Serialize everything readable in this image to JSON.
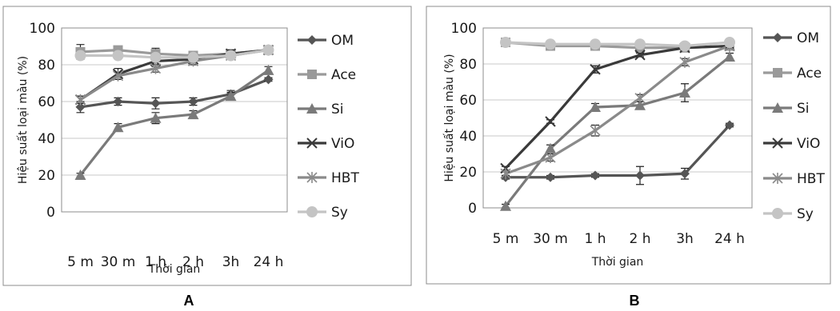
{
  "chart_data": [
    {
      "type": "line",
      "panel_label": "A",
      "xlabel": "Thời gian",
      "ylabel": "Hiệu suất loại màu (%)",
      "categories": [
        "5 m",
        "30 m",
        "1 h",
        "2 h",
        "3h",
        "24 h"
      ],
      "ylim": [
        0,
        100
      ],
      "yticks": [
        "0",
        "20",
        "40",
        "60",
        "80",
        "100"
      ],
      "grid": true,
      "legend_position": "right",
      "series": [
        {
          "name": "OM",
          "color": "#555555",
          "marker": "diamond",
          "values": [
            57,
            60,
            59,
            60,
            64,
            72
          ],
          "errors": [
            3,
            2,
            3,
            2,
            2,
            1
          ]
        },
        {
          "name": "Ace",
          "color": "#9a9a9a",
          "marker": "square",
          "values": [
            87,
            88,
            86,
            85,
            86,
            88
          ],
          "errors": [
            4,
            2,
            3,
            2,
            2,
            1
          ]
        },
        {
          "name": "Si",
          "color": "#7a7a7a",
          "marker": "triangle",
          "values": [
            20,
            46,
            51,
            53,
            63,
            77
          ],
          "errors": [
            1,
            2,
            3,
            2,
            2,
            2
          ]
        },
        {
          "name": "ViO",
          "color": "#3a3a3a",
          "marker": "x",
          "values": [
            61,
            75,
            82,
            83,
            86,
            88
          ],
          "errors": [
            2,
            3,
            3,
            2,
            2,
            1
          ]
        },
        {
          "name": "HBT",
          "color": "#8a8a8a",
          "marker": "star",
          "values": [
            61,
            74,
            78,
            82,
            85,
            88
          ],
          "errors": [
            2,
            2,
            2,
            2,
            2,
            1
          ]
        },
        {
          "name": "Sy",
          "color": "#c4c4c4",
          "marker": "circle",
          "values": [
            85,
            85,
            84,
            84,
            85,
            88
          ],
          "errors": [
            2,
            1,
            1,
            1,
            1,
            1
          ]
        }
      ]
    },
    {
      "type": "line",
      "panel_label": "B",
      "xlabel": "Thời gian",
      "ylabel": "Hiệu suất loại màu (%)",
      "categories": [
        "5 m",
        "30 m",
        "1 h",
        "2 h",
        "3h",
        "24 h"
      ],
      "ylim": [
        0,
        100
      ],
      "yticks": [
        "0",
        "20",
        "40",
        "60",
        "80",
        "100"
      ],
      "grid": true,
      "legend_position": "right",
      "series": [
        {
          "name": "OM",
          "color": "#555555",
          "marker": "diamond",
          "values": [
            17,
            17,
            18,
            18,
            19,
            46
          ],
          "errors": [
            1,
            1,
            1,
            5,
            3,
            1
          ]
        },
        {
          "name": "Ace",
          "color": "#9a9a9a",
          "marker": "square",
          "values": [
            92,
            90,
            90,
            89,
            89,
            90
          ],
          "errors": [
            1,
            1,
            1,
            1,
            1,
            1
          ]
        },
        {
          "name": "Si",
          "color": "#7a7a7a",
          "marker": "triangle",
          "values": [
            1,
            33,
            56,
            57,
            64,
            84
          ],
          "errors": [
            1,
            2,
            2,
            2,
            5,
            2
          ]
        },
        {
          "name": "ViO",
          "color": "#3a3a3a",
          "marker": "x",
          "values": [
            22,
            48,
            77,
            85,
            89,
            90
          ],
          "errors": [
            1,
            1,
            2,
            1,
            1,
            1
          ]
        },
        {
          "name": "HBT",
          "color": "#8a8a8a",
          "marker": "star",
          "values": [
            19,
            28,
            43,
            61,
            81,
            90
          ],
          "errors": [
            1,
            2,
            3,
            2,
            2,
            1
          ]
        },
        {
          "name": "Sy",
          "color": "#c4c4c4",
          "marker": "circle",
          "values": [
            92,
            91,
            91,
            91,
            90,
            92
          ],
          "errors": [
            1,
            1,
            1,
            1,
            1,
            1
          ]
        }
      ]
    }
  ]
}
